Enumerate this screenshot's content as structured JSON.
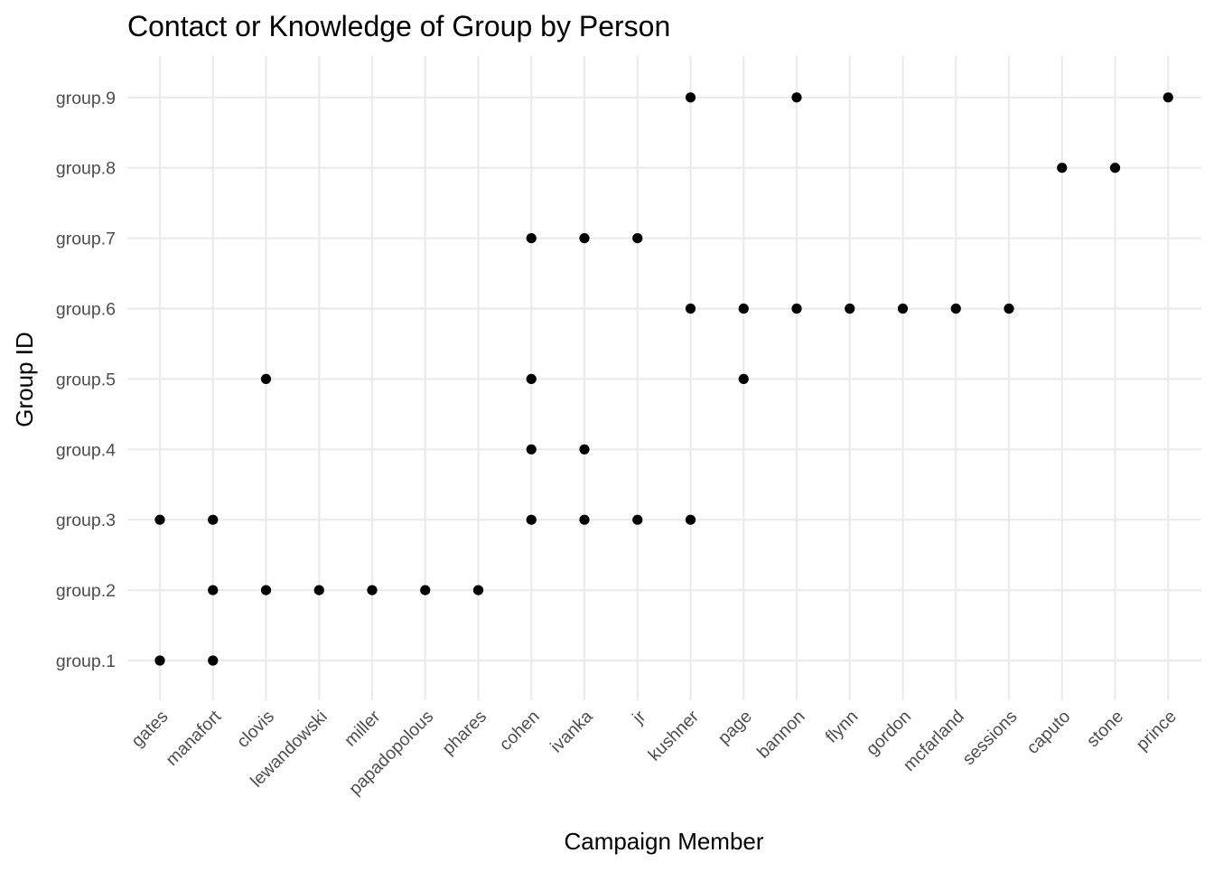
{
  "chart_data": {
    "type": "scatter",
    "title": "Contact or Knowledge of Group by Person",
    "xlabel": "Campaign Member",
    "ylabel": "Group ID",
    "grid": true,
    "legend": "none",
    "x_categories": [
      "gates",
      "manafort",
      "clovis",
      "lewandowski",
      "miller",
      "papadopolous",
      "phares",
      "cohen",
      "ivanka",
      "jr",
      "kushner",
      "page",
      "bannon",
      "flynn",
      "gordon",
      "mcfarland",
      "sessions",
      "caputo",
      "stone",
      "prince"
    ],
    "y_categories": [
      "group.1",
      "group.2",
      "group.3",
      "group.4",
      "group.5",
      "group.6",
      "group.7",
      "group.8",
      "group.9"
    ],
    "points": [
      {
        "x": "gates",
        "y": "group.1"
      },
      {
        "x": "gates",
        "y": "group.3"
      },
      {
        "x": "manafort",
        "y": "group.1"
      },
      {
        "x": "manafort",
        "y": "group.2"
      },
      {
        "x": "manafort",
        "y": "group.3"
      },
      {
        "x": "clovis",
        "y": "group.2"
      },
      {
        "x": "clovis",
        "y": "group.5"
      },
      {
        "x": "lewandowski",
        "y": "group.2"
      },
      {
        "x": "miller",
        "y": "group.2"
      },
      {
        "x": "papadopolous",
        "y": "group.2"
      },
      {
        "x": "phares",
        "y": "group.2"
      },
      {
        "x": "cohen",
        "y": "group.3"
      },
      {
        "x": "cohen",
        "y": "group.4"
      },
      {
        "x": "cohen",
        "y": "group.5"
      },
      {
        "x": "cohen",
        "y": "group.7"
      },
      {
        "x": "ivanka",
        "y": "group.3"
      },
      {
        "x": "ivanka",
        "y": "group.4"
      },
      {
        "x": "ivanka",
        "y": "group.7"
      },
      {
        "x": "jr",
        "y": "group.3"
      },
      {
        "x": "jr",
        "y": "group.7"
      },
      {
        "x": "kushner",
        "y": "group.3"
      },
      {
        "x": "kushner",
        "y": "group.6"
      },
      {
        "x": "kushner",
        "y": "group.9"
      },
      {
        "x": "page",
        "y": "group.5"
      },
      {
        "x": "page",
        "y": "group.6"
      },
      {
        "x": "bannon",
        "y": "group.6"
      },
      {
        "x": "bannon",
        "y": "group.9"
      },
      {
        "x": "flynn",
        "y": "group.6"
      },
      {
        "x": "gordon",
        "y": "group.6"
      },
      {
        "x": "mcfarland",
        "y": "group.6"
      },
      {
        "x": "sessions",
        "y": "group.6"
      },
      {
        "x": "caputo",
        "y": "group.8"
      },
      {
        "x": "stone",
        "y": "group.8"
      },
      {
        "x": "prince",
        "y": "group.9"
      }
    ],
    "colors": {
      "point": "#000000",
      "grid": "#ebebeb",
      "title": "#000000",
      "axis_title": "#000000",
      "tick_label": "#4d4d4d",
      "background": "#ffffff"
    }
  }
}
